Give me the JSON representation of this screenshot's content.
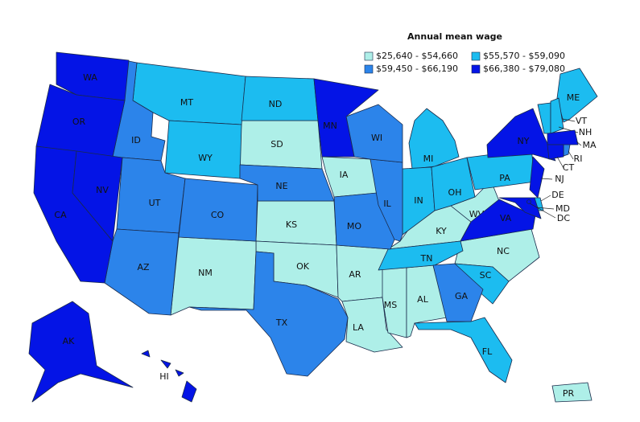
{
  "legend": {
    "title": "Annual mean wage",
    "entries": [
      {
        "label": "$25,640 - $54,660",
        "color": "#aeefe8",
        "states": [
          "SD",
          "IA",
          "KS",
          "OK",
          "NM",
          "AR",
          "LA",
          "MS",
          "AL",
          "KY",
          "WV",
          "NC",
          "PR"
        ]
      },
      {
        "label": "$55,570 - $59,090",
        "color": "#1cbcf0",
        "states": [
          "MT",
          "WY",
          "ND",
          "MI",
          "IN",
          "OH",
          "PA",
          "TN",
          "SC",
          "FL",
          "ME",
          "VT",
          "NH",
          "DE"
        ]
      },
      {
        "label": "$59,450 - $66,190",
        "color": "#2c84ea",
        "states": [
          "ID",
          "UT",
          "AZ",
          "CO",
          "NE",
          "TX",
          "MO",
          "IL",
          "WI",
          "GA",
          "RI"
        ]
      },
      {
        "label": "$66,380 - $79,080",
        "color": "#0414e6",
        "states": [
          "WA",
          "OR",
          "CA",
          "NV",
          "MN",
          "NY",
          "VA",
          "NJ",
          "MA",
          "CT",
          "MD",
          "DC",
          "AK",
          "HI"
        ]
      }
    ]
  }
}
